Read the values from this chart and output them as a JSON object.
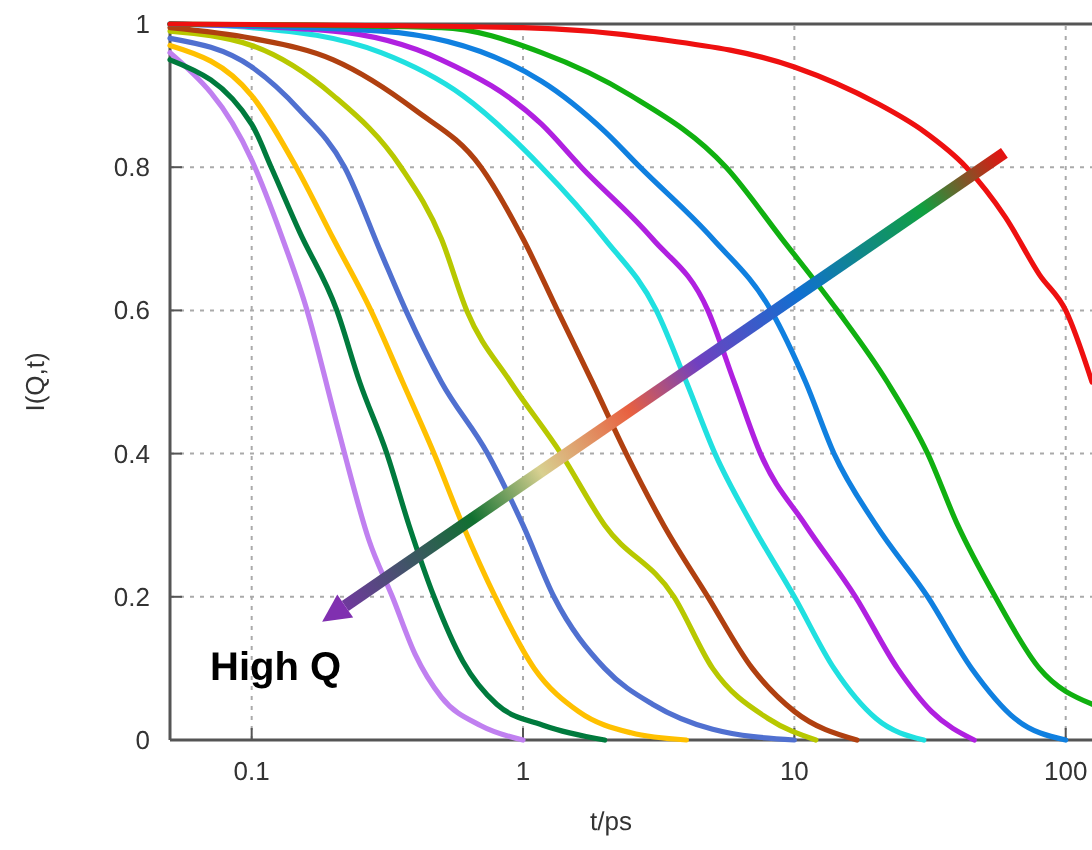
{
  "chart_data": {
    "type": "line",
    "xlabel": "t/ps",
    "ylabel": "I(Q,t)",
    "log": "x",
    "xlim": [
      0.05,
      125
    ],
    "xticks": [
      {
        "value": 0.1,
        "label": "0.1"
      },
      1,
      10,
      100
    ],
    "ylim": [
      0,
      1
    ],
    "yticks": [
      0,
      0.2,
      0.4,
      0.6,
      0.8,
      1
    ],
    "grid": true,
    "marker": "none",
    "line_style": "solid",
    "annotations": [
      "High Q"
    ],
    "series": [
      {
        "color": "#c080f0",
        "x": [
          0.05,
          0.1,
          0.13,
          0.16,
          0.2,
          0.22,
          0.27,
          0.33,
          0.4,
          0.5,
          0.7,
          1
        ],
        "values": [
          0.96,
          0.81,
          0.7,
          0.6,
          0.46,
          0.4,
          0.28,
          0.2,
          0.12,
          0.06,
          0.02,
          0
        ]
      },
      {
        "color": "#007a3d",
        "x": [
          0.05,
          0.1,
          0.118,
          0.15,
          0.206,
          0.25,
          0.315,
          0.38,
          0.47,
          0.6,
          0.8,
          1.2,
          2
        ],
        "values": [
          0.95,
          0.86,
          0.8,
          0.71,
          0.6,
          0.5,
          0.4,
          0.3,
          0.2,
          0.11,
          0.05,
          0.02,
          0
        ]
      },
      {
        "color": "#ffc000",
        "x": [
          0.05,
          0.1,
          0.146,
          0.2,
          0.275,
          0.36,
          0.47,
          0.6,
          0.79,
          1.1,
          1.6,
          2.5,
          4
        ],
        "values": [
          0.97,
          0.9,
          0.8,
          0.7,
          0.6,
          0.5,
          0.4,
          0.3,
          0.2,
          0.1,
          0.04,
          0.01,
          0
        ]
      },
      {
        "color": "#5070d0",
        "x": [
          0.05,
          0.1,
          0.15,
          0.22,
          0.3,
          0.37,
          0.5,
          0.74,
          1,
          1.3,
          2,
          3,
          5,
          10
        ],
        "values": [
          0.98,
          0.94,
          0.88,
          0.8,
          0.68,
          0.6,
          0.5,
          0.4,
          0.3,
          0.2,
          0.1,
          0.05,
          0.015,
          0
        ]
      },
      {
        "color": "#b8c800",
        "x": [
          0.05,
          0.1,
          0.2,
          0.355,
          0.5,
          0.62,
          0.9,
          1.38,
          2,
          3.6,
          5,
          8,
          12
        ],
        "values": [
          0.99,
          0.97,
          0.9,
          0.8,
          0.7,
          0.6,
          0.5,
          0.4,
          0.3,
          0.2,
          0.1,
          0.03,
          0
        ]
      },
      {
        "color": "#b04010",
        "x": [
          0.05,
          0.1,
          0.2,
          0.4,
          0.7,
          1,
          1.34,
          1.8,
          2.4,
          3.3,
          4.8,
          7,
          10,
          17
        ],
        "values": [
          0.995,
          0.98,
          0.95,
          0.88,
          0.8,
          0.7,
          0.6,
          0.5,
          0.4,
          0.3,
          0.2,
          0.1,
          0.04,
          0
        ]
      },
      {
        "color": "#20e0e0",
        "x": [
          0.05,
          0.1,
          0.3,
          0.6,
          1.17,
          2,
          3.1,
          4,
          5.1,
          7,
          10,
          14,
          20,
          30
        ],
        "values": [
          1,
          0.995,
          0.96,
          0.9,
          0.8,
          0.7,
          0.6,
          0.5,
          0.4,
          0.3,
          0.2,
          0.1,
          0.03,
          0
        ]
      },
      {
        "color": "#b020e0",
        "x": [
          0.05,
          0.2,
          0.5,
          1.17,
          1.64,
          3,
          4.8,
          6,
          7.5,
          11,
          16.8,
          24,
          32,
          46
        ],
        "values": [
          1,
          0.99,
          0.95,
          0.86,
          0.8,
          0.7,
          0.6,
          0.5,
          0.4,
          0.3,
          0.2,
          0.1,
          0.04,
          0
        ]
      },
      {
        "color": "#1080e0",
        "x": [
          0.05,
          0.3,
          1.17,
          2,
          2.7,
          5,
          8.2,
          11,
          14,
          20,
          31,
          45,
          65,
          100
        ],
        "values": [
          1,
          0.99,
          0.92,
          0.85,
          0.8,
          0.7,
          0.6,
          0.5,
          0.4,
          0.3,
          0.2,
          0.1,
          0.03,
          0
        ]
      },
      {
        "color": "#10b010",
        "x": [
          0.05,
          0.5,
          1.17,
          2.5,
          5.6,
          9,
          14.4,
          22,
          31,
          40,
          55,
          80,
          125
        ],
        "values": [
          1,
          0.995,
          0.96,
          0.9,
          0.8,
          0.7,
          0.6,
          0.5,
          0.4,
          0.3,
          0.2,
          0.1,
          0.05
        ]
      },
      {
        "color": "#ee1010",
        "x": [
          0.05,
          1,
          3,
          10,
          20,
          30,
          43,
          60,
          80,
          100,
          125
        ],
        "values": [
          1,
          0.995,
          0.98,
          0.94,
          0.89,
          0.85,
          0.8,
          0.73,
          0.65,
          0.6,
          0.5
        ]
      }
    ]
  }
}
